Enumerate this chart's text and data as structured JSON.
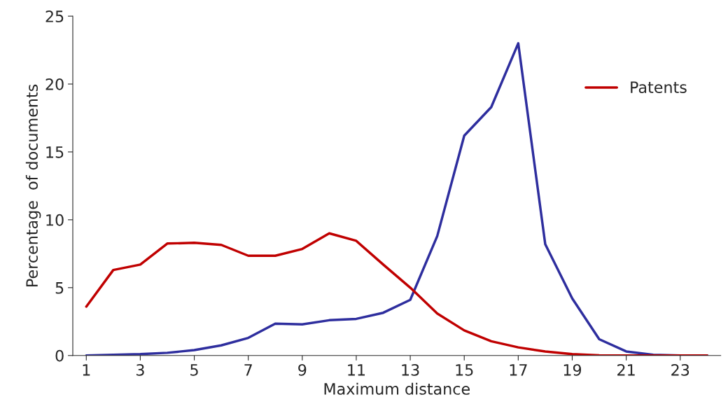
{
  "chart_data": {
    "type": "line",
    "xlabel": "Maximum distance",
    "ylabel": "Percentage  of documents",
    "x": [
      1,
      2,
      3,
      4,
      5,
      6,
      7,
      8,
      9,
      10,
      11,
      12,
      13,
      14,
      15,
      16,
      17,
      18,
      19,
      20,
      21,
      22,
      23,
      24
    ],
    "series": [
      {
        "color": "#2e2e9e",
        "values": [
          0,
          0.05,
          0.1,
          0.2,
          0.4,
          0.75,
          1.3,
          2.35,
          2.3,
          2.6,
          2.7,
          3.15,
          4.1,
          8.8,
          16.2,
          18.3,
          23,
          8.2,
          4.2,
          1.2,
          0.3,
          0.05,
          0,
          0
        ]
      },
      {
        "name": "Patents",
        "color": "#c00000",
        "values": [
          3.6,
          6.3,
          6.7,
          8.25,
          8.3,
          8.15,
          7.35,
          7.35,
          7.85,
          9,
          8.45,
          6.7,
          5,
          3.1,
          1.85,
          1.05,
          0.6,
          0.3,
          0.1,
          0.02,
          0,
          0,
          0,
          0
        ]
      }
    ],
    "xlim": [
      0.5,
      24.5
    ],
    "xticks": [
      1,
      3,
      5,
      7,
      9,
      11,
      13,
      15,
      17,
      19,
      21,
      23
    ],
    "ylim": [
      0,
      25
    ],
    "yticks": [
      0,
      5,
      10,
      15,
      20,
      25
    ],
    "grid": false,
    "legend": "top right",
    "marker": "none",
    "line_style": "solid"
  }
}
